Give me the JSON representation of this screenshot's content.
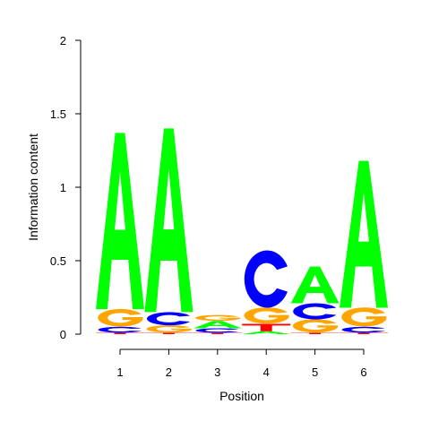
{
  "chart_data": {
    "type": "sequence-logo",
    "xlabel": "Position",
    "ylabel": "Information content",
    "ylim": [
      0,
      2
    ],
    "y_ticks": [
      "0",
      "0.5",
      "1",
      "1.5",
      "2"
    ],
    "y_tick_values": [
      0,
      0.5,
      1,
      1.5,
      2
    ],
    "x_ticks": [
      "1",
      "2",
      "3",
      "4",
      "5",
      "6"
    ],
    "colors": {
      "A": "#00ff00",
      "C": "#0000ff",
      "G": "#ffa500",
      "T": "#ff0000"
    },
    "positions": [
      {
        "position": "1",
        "stack": [
          {
            "letter": "T",
            "height": 0.01
          },
          {
            "letter": "C",
            "height": 0.04
          },
          {
            "letter": "G",
            "height": 0.12
          },
          {
            "letter": "A",
            "height": 1.2
          }
        ]
      },
      {
        "position": "2",
        "stack": [
          {
            "letter": "T",
            "height": 0.01
          },
          {
            "letter": "G",
            "height": 0.05
          },
          {
            "letter": "C",
            "height": 0.09
          },
          {
            "letter": "A",
            "height": 1.25
          }
        ]
      },
      {
        "position": "3",
        "stack": [
          {
            "letter": "T",
            "height": 0.01
          },
          {
            "letter": "C",
            "height": 0.03
          },
          {
            "letter": "A",
            "height": 0.05
          },
          {
            "letter": "G",
            "height": 0.04
          }
        ]
      },
      {
        "position": "4",
        "stack": [
          {
            "letter": "A",
            "height": 0.02
          },
          {
            "letter": "T",
            "height": 0.05
          },
          {
            "letter": "G",
            "height": 0.11
          },
          {
            "letter": "C",
            "height": 0.39
          }
        ]
      },
      {
        "position": "5",
        "stack": [
          {
            "letter": "T",
            "height": 0.01
          },
          {
            "letter": "G",
            "height": 0.09
          },
          {
            "letter": "C",
            "height": 0.11
          },
          {
            "letter": "A",
            "height": 0.25
          }
        ]
      },
      {
        "position": "6",
        "stack": [
          {
            "letter": "T",
            "height": 0.01
          },
          {
            "letter": "C",
            "height": 0.04
          },
          {
            "letter": "G",
            "height": 0.13
          },
          {
            "letter": "A",
            "height": 1.0
          }
        ]
      }
    ]
  }
}
